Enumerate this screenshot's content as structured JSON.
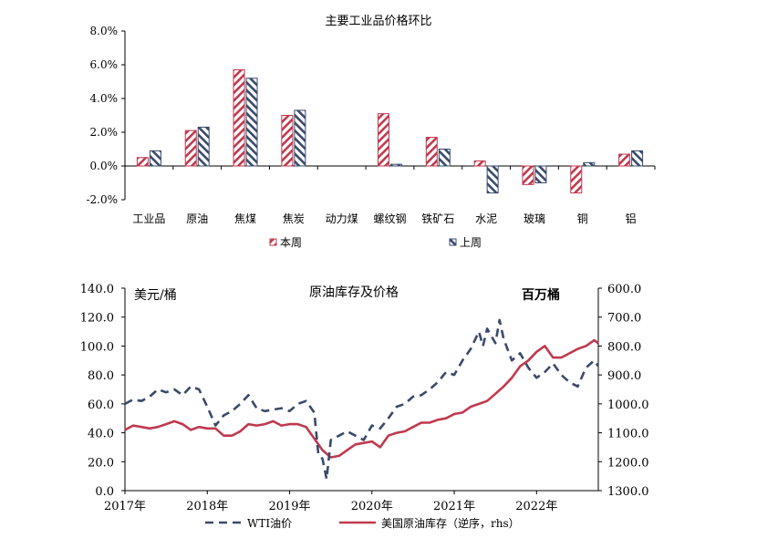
{
  "chart_data": [
    {
      "type": "bar",
      "title": "主要工业品价格环比",
      "categories": [
        "工业品",
        "原油",
        "焦煤",
        "焦炭",
        "动力煤",
        "螺纹钢",
        "铁矿石",
        "水泥",
        "玻璃",
        "铜",
        "铝"
      ],
      "yticks": [
        "8.0%",
        "6.0%",
        "4.0%",
        "2.0%",
        "0.0%",
        "-2.0%"
      ],
      "ylim": [
        -2,
        8
      ],
      "legend_position": "bottom",
      "series": [
        {
          "name": "本周",
          "color": "#c0394e",
          "values": [
            0.5,
            2.1,
            5.7,
            3.0,
            0.0,
            3.1,
            1.7,
            0.3,
            -1.1,
            -1.6,
            0.7
          ]
        },
        {
          "name": "上周",
          "color": "#3a4a6b",
          "values": [
            0.9,
            2.3,
            5.2,
            3.3,
            0.0,
            0.1,
            1.0,
            -1.6,
            -1.0,
            0.2,
            0.9
          ]
        }
      ]
    },
    {
      "type": "line",
      "title": "原油库存及价格",
      "ylabel_left": "美元/桶",
      "ylabel_right": "百万桶",
      "yticks_left": [
        "140.0",
        "120.0",
        "100.0",
        "80.0",
        "60.0",
        "40.0",
        "20.0",
        "0.0"
      ],
      "yticks_right": [
        "600.0",
        "700.0",
        "800.0",
        "900.0",
        "1000.0",
        "1100.0",
        "1200.0",
        "1300.0"
      ],
      "xticks": [
        "2017年",
        "2018年",
        "2019年",
        "2020年",
        "2021年",
        "2022年"
      ],
      "ylim_left": [
        0,
        140
      ],
      "ylim_right": [
        600,
        1300
      ],
      "right_axis_inverted": true,
      "xlim": [
        2017.0,
        2022.75
      ],
      "legend_position": "bottom",
      "series": [
        {
          "name": "WTI油价",
          "axis": "left",
          "color": "#3a4a6b",
          "style": "dashed",
          "x": [
            2017.0,
            2017.1,
            2017.2,
            2017.3,
            2017.4,
            2017.5,
            2017.6,
            2017.7,
            2017.8,
            2017.9,
            2018.0,
            2018.1,
            2018.2,
            2018.3,
            2018.4,
            2018.5,
            2018.6,
            2018.7,
            2018.8,
            2018.9,
            2019.0,
            2019.1,
            2019.2,
            2019.3,
            2019.35,
            2019.4,
            2019.45,
            2019.5,
            2019.6,
            2019.7,
            2019.8,
            2019.9,
            2020.0,
            2020.1,
            2020.2,
            2020.3,
            2020.4,
            2020.5,
            2020.6,
            2020.7,
            2020.8,
            2020.9,
            2021.0,
            2021.1,
            2021.2,
            2021.3,
            2021.35,
            2021.4,
            2021.5,
            2021.55,
            2021.6,
            2021.7,
            2021.8,
            2021.9,
            2022.0,
            2022.1,
            2022.2,
            2022.3,
            2022.4,
            2022.5,
            2022.6,
            2022.7,
            2022.75
          ],
          "y": [
            60,
            63,
            62,
            65,
            70,
            68,
            70,
            66,
            72,
            70,
            58,
            45,
            52,
            55,
            60,
            66,
            57,
            55,
            56,
            57,
            55,
            60,
            62,
            54,
            25,
            22,
            8,
            35,
            38,
            41,
            38,
            35,
            45,
            43,
            50,
            58,
            60,
            65,
            66,
            70,
            75,
            82,
            80,
            90,
            98,
            110,
            100,
            112,
            102,
            118,
            105,
            90,
            95,
            85,
            78,
            82,
            88,
            80,
            75,
            72,
            85,
            90,
            86
          ]
        },
        {
          "name": "美国原油库存（逆序，rhs）",
          "axis": "right",
          "color": "#c0394e",
          "style": "solid",
          "x": [
            2017.0,
            2017.1,
            2017.2,
            2017.3,
            2017.4,
            2017.5,
            2017.6,
            2017.7,
            2017.8,
            2017.9,
            2018.0,
            2018.1,
            2018.2,
            2018.3,
            2018.4,
            2018.5,
            2018.6,
            2018.7,
            2018.8,
            2018.9,
            2019.0,
            2019.1,
            2019.2,
            2019.3,
            2019.4,
            2019.5,
            2019.6,
            2019.7,
            2019.8,
            2019.9,
            2020.0,
            2020.1,
            2020.2,
            2020.3,
            2020.4,
            2020.5,
            2020.6,
            2020.7,
            2020.8,
            2020.9,
            2021.0,
            2021.1,
            2021.2,
            2021.3,
            2021.4,
            2021.5,
            2021.6,
            2021.7,
            2021.8,
            2021.9,
            2022.0,
            2022.1,
            2022.2,
            2022.3,
            2022.4,
            2022.5,
            2022.6,
            2022.7,
            2022.75
          ],
          "y": [
            1090,
            1075,
            1080,
            1085,
            1080,
            1070,
            1060,
            1070,
            1090,
            1080,
            1085,
            1085,
            1110,
            1110,
            1095,
            1070,
            1075,
            1070,
            1060,
            1075,
            1070,
            1070,
            1080,
            1120,
            1160,
            1185,
            1180,
            1160,
            1140,
            1135,
            1130,
            1150,
            1110,
            1100,
            1095,
            1080,
            1065,
            1065,
            1055,
            1050,
            1035,
            1030,
            1010,
            1000,
            990,
            965,
            940,
            910,
            870,
            850,
            820,
            800,
            840,
            840,
            825,
            810,
            800,
            780,
            790
          ]
        }
      ]
    }
  ]
}
